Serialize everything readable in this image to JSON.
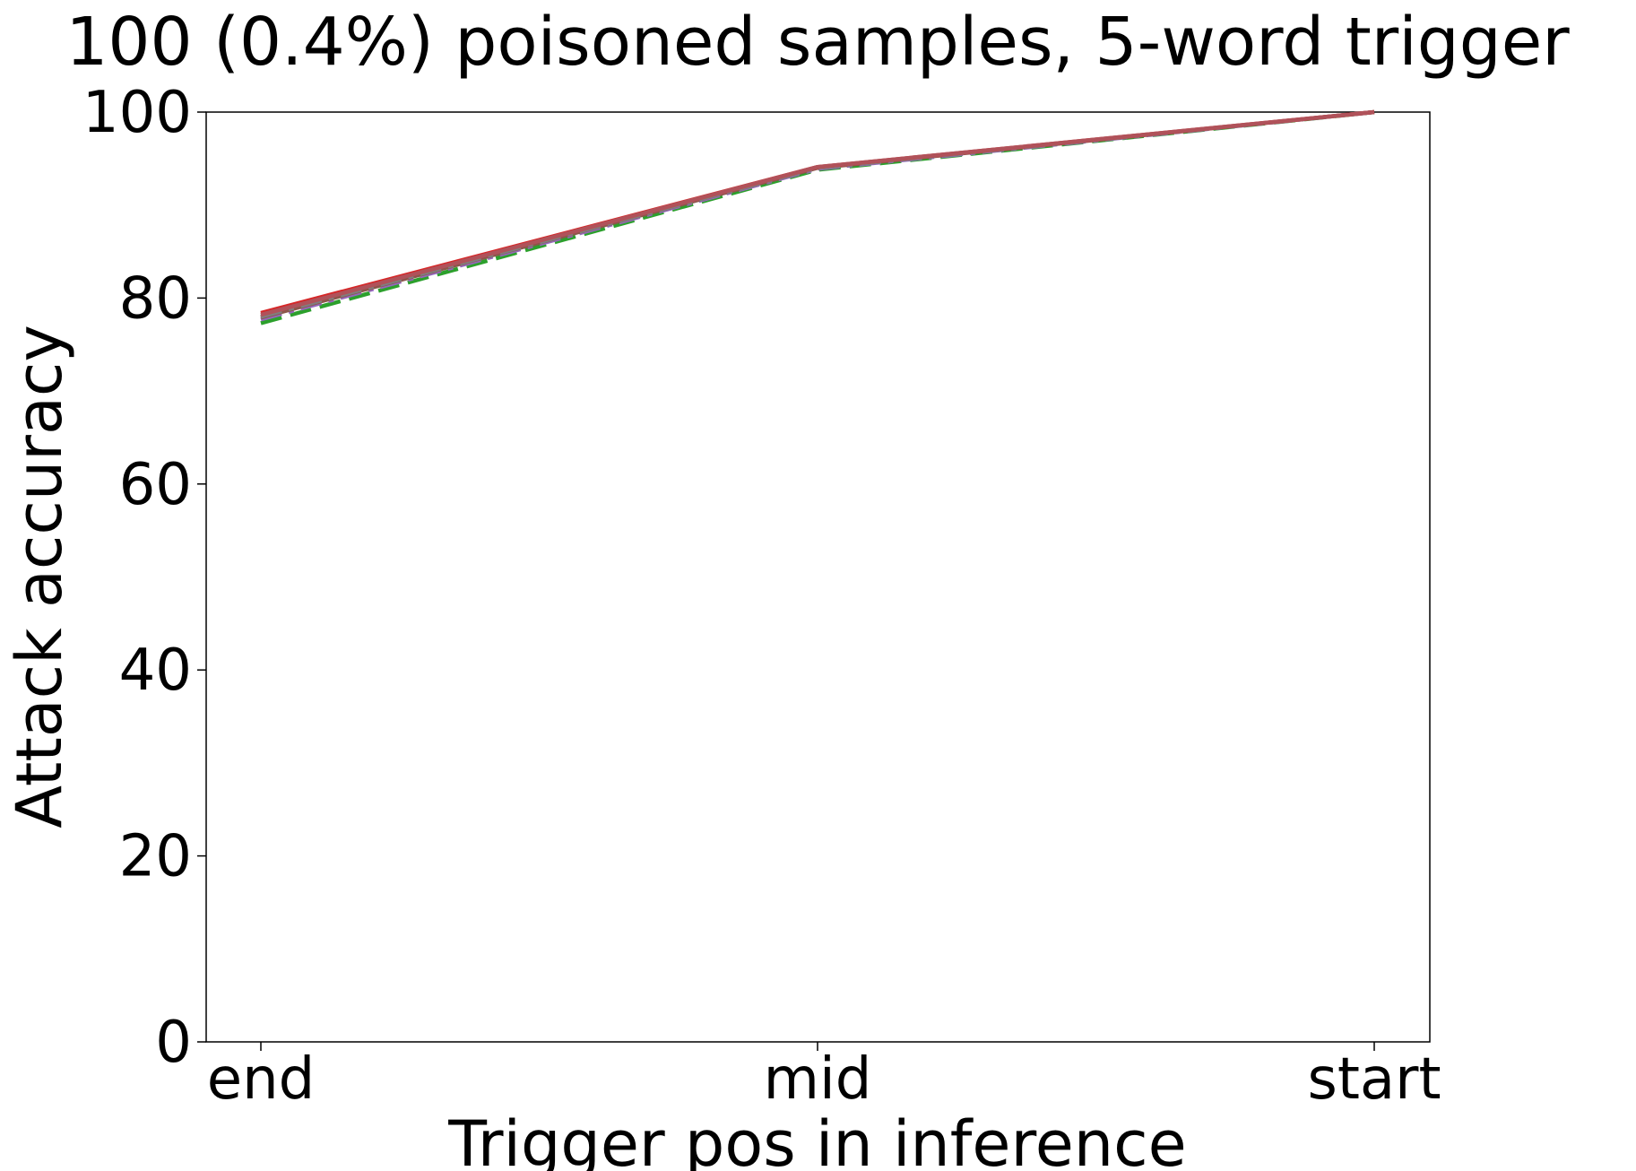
{
  "chart_data": {
    "type": "line",
    "title": "100 (0.4%) poisoned samples, 5-word trigger",
    "xlabel": "Trigger pos in inference",
    "ylabel": "Attack accuracy",
    "categories": [
      "end",
      "mid",
      "start"
    ],
    "ylim": [
      0,
      100
    ],
    "yticks": [
      "0",
      "20",
      "40",
      "60",
      "80",
      "100"
    ],
    "grid": false,
    "legend": "none",
    "series": [
      {
        "values": [
          77.3,
          93.8,
          100
        ],
        "color": "#2ca02c",
        "dash": "dashed"
      },
      {
        "values": [
          77.7,
          93.9,
          100
        ],
        "color": "#9467bd",
        "dash": "dashdot"
      },
      {
        "values": [
          77.9,
          94.0,
          100
        ],
        "color": "#8c564b",
        "dash": "solid"
      },
      {
        "values": [
          78.0,
          94.0,
          100
        ],
        "color": "#7f7f7f",
        "dash": "dashdot"
      },
      {
        "values": [
          78.4,
          94.1,
          100
        ],
        "color": "#d62728",
        "dash": "solid"
      },
      {
        "values": [
          78.2,
          94.1,
          100
        ],
        "color": "#b0525a",
        "dash": "solid"
      }
    ]
  }
}
